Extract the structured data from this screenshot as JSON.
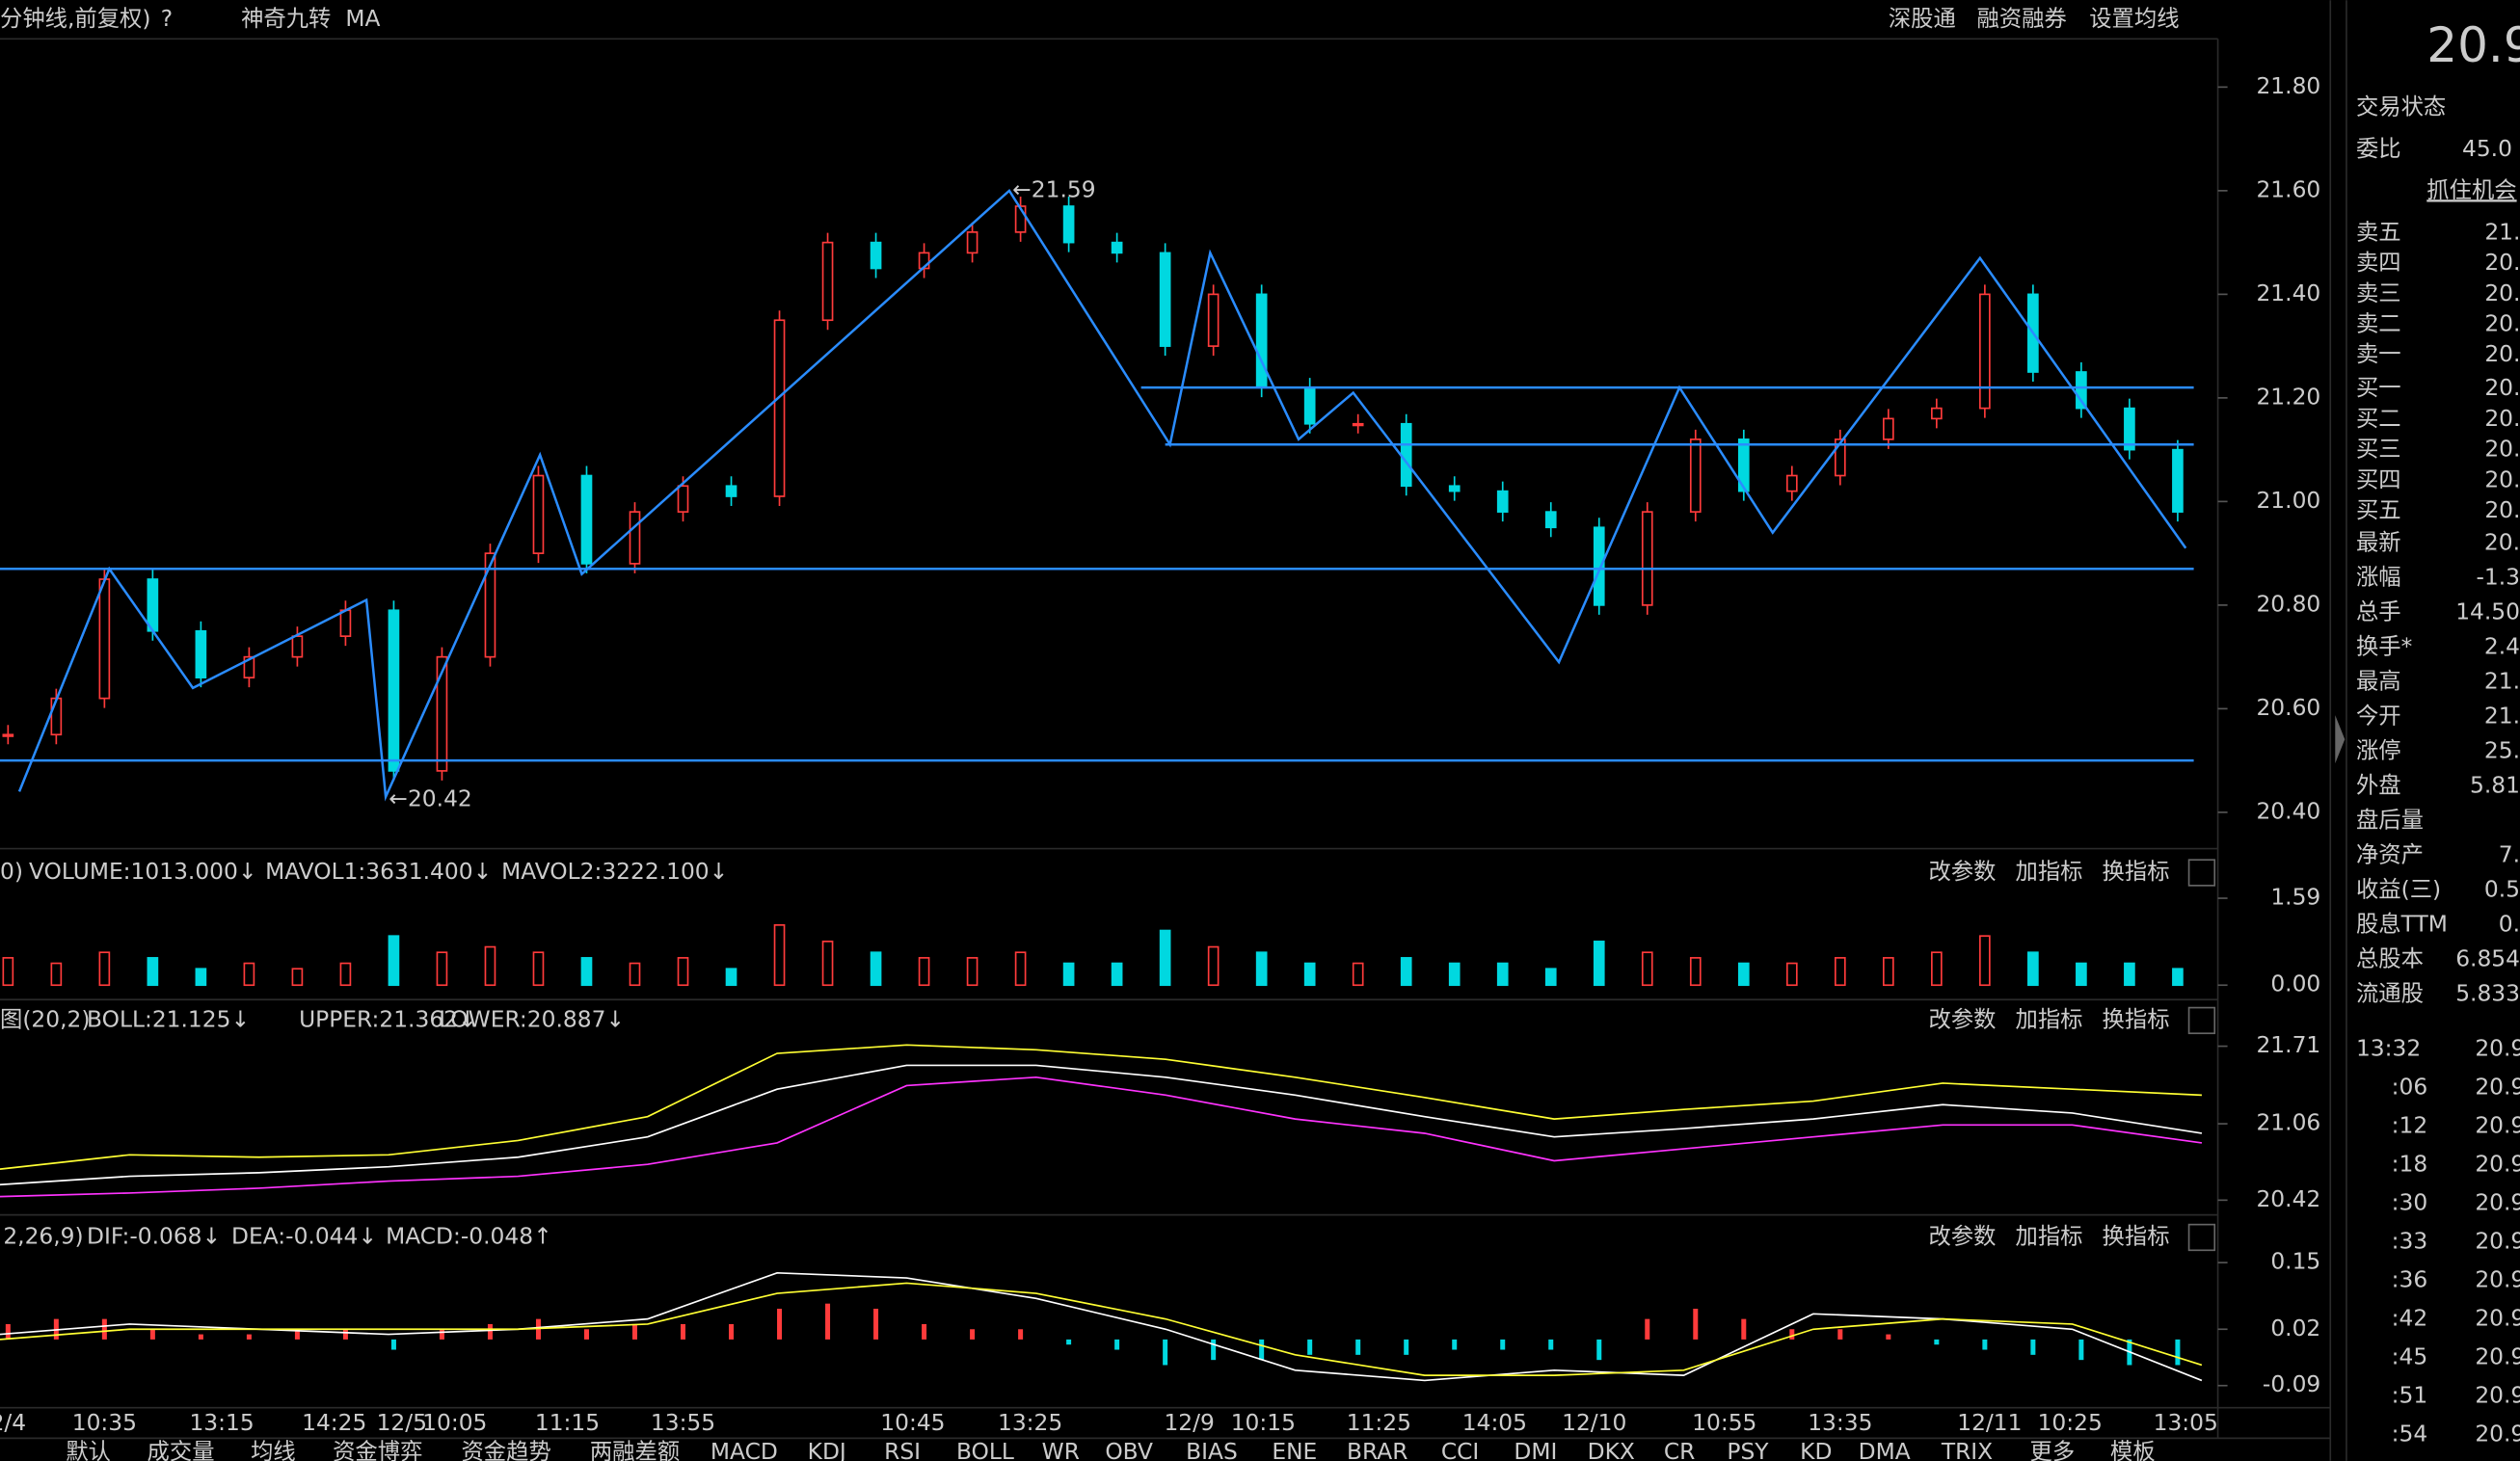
{
  "toolbar": {
    "left": [
      "分钟线,前复权)",
      "?",
      "神奇九转",
      "MA"
    ],
    "right": [
      "深股通",
      "融资融券",
      "设置均线"
    ]
  },
  "main": {
    "type": "candlestick",
    "ylim": [
      20.33,
      21.89
    ],
    "yticks": [
      {
        "value": 20.4,
        "label": "20.40"
      },
      {
        "value": 20.6,
        "label": "20.60"
      },
      {
        "value": 20.8,
        "label": "20.80"
      },
      {
        "value": 21.0,
        "label": "21.00"
      },
      {
        "value": 21.2,
        "label": "21.20"
      },
      {
        "value": 21.4,
        "label": "21.40"
      },
      {
        "value": 21.6,
        "label": "21.60"
      },
      {
        "value": 21.8,
        "label": "21.80"
      }
    ],
    "closes": [
      20.55,
      20.62,
      20.85,
      20.75,
      20.66,
      20.7,
      20.74,
      20.79,
      20.48,
      20.7,
      20.9,
      21.05,
      20.88,
      20.98,
      21.03,
      21.01,
      21.35,
      21.5,
      21.45,
      21.48,
      21.52,
      21.57,
      21.5,
      21.48,
      21.3,
      21.4,
      21.22,
      21.15,
      21.15,
      21.03,
      21.02,
      20.98,
      20.95,
      20.8,
      20.98,
      21.12,
      21.02,
      21.05,
      21.12,
      21.16,
      21.18,
      21.4,
      21.25,
      21.18,
      21.1,
      20.98
    ],
    "zigzag": {
      "color": "#2a8cff",
      "values": [
        20.44,
        20.87,
        20.64,
        20.81,
        20.43,
        21.09,
        20.86,
        21.6,
        21.11,
        21.48,
        21.12,
        21.21,
        20.69,
        21.22,
        20.94,
        21.47,
        20.91
      ]
    },
    "levels": [
      21.22,
      21.11,
      20.87,
      20.5
    ],
    "annotations": [
      "←21.59",
      "←20.42"
    ],
    "times": [
      "2/4",
      "10:35",
      "13:15",
      "14:25",
      "12/5",
      "10:05",
      "11:15",
      "13:55",
      "10:45",
      "13:25",
      "12/9",
      "10:15",
      "11:25",
      "14:05",
      "12/10",
      "10:55",
      "13:35",
      "12/11",
      "10:25",
      "13:05"
    ]
  },
  "volume": {
    "labels": [
      "0)",
      "VOLUME:1013.000↓",
      "MAVOL1:3631.400↓",
      "MAVOL2:3222.100↓"
    ],
    "ylim": [
      0,
      2.44
    ],
    "yticks": [
      {
        "value": 0,
        "label": "0.00"
      },
      1.59
    ],
    "values": [
      0.5,
      0.4,
      0.6,
      0.5,
      0.3,
      0.4,
      0.3,
      0.4,
      0.9,
      0.6,
      0.7,
      0.6,
      0.5,
      0.4,
      0.5,
      0.3,
      1.1,
      0.8,
      0.6,
      0.5,
      0.5,
      0.6,
      0.4,
      0.4,
      1.0,
      0.7,
      0.6,
      0.4,
      0.4,
      0.5,
      0.4,
      0.4,
      0.3,
      0.8,
      0.6,
      0.5,
      0.4,
      0.4,
      0.5,
      0.5,
      0.6,
      0.9,
      0.6,
      0.4,
      0.4,
      0.3
    ]
  },
  "boll": {
    "labels": [
      "图(20,2)",
      "BOLL:21.125↓",
      "UPPER:21.362↓",
      "LOWER:20.887↓"
    ],
    "ylim": [
      20.31,
      22.06
    ],
    "yticks": [
      20.42,
      21.06,
      21.71
    ],
    "mid": [
      20.55,
      20.62,
      20.65,
      20.7,
      20.78,
      20.95,
      21.35,
      21.55,
      21.55,
      21.45,
      21.3,
      21.12,
      20.95,
      21.02,
      21.1,
      21.22,
      21.15,
      20.98
    ],
    "upper": [
      20.68,
      20.8,
      20.78,
      20.8,
      20.92,
      21.12,
      21.65,
      21.72,
      21.68,
      21.6,
      21.45,
      21.28,
      21.1,
      21.18,
      21.25,
      21.4,
      21.35,
      21.3
    ],
    "lower": [
      20.45,
      20.48,
      20.52,
      20.58,
      20.62,
      20.72,
      20.9,
      21.38,
      21.45,
      21.3,
      21.1,
      20.98,
      20.75,
      20.85,
      20.95,
      21.05,
      21.05,
      20.9
    ]
  },
  "macd": {
    "labels": [
      "2,26,9)",
      "DIF:-0.068↓",
      "DEA:-0.044↓",
      "MACD:-0.048↑"
    ],
    "ylim": [
      -0.13,
      0.24
    ],
    "yticks": [
      -0.09,
      0.02,
      0.15
    ],
    "hist": [
      0.03,
      0.04,
      0.04,
      0.02,
      0.01,
      0.01,
      0.02,
      0.02,
      -0.02,
      0.02,
      0.03,
      0.04,
      0.02,
      0.03,
      0.03,
      0.03,
      0.06,
      0.07,
      0.06,
      0.03,
      0.02,
      0.02,
      -0.01,
      -0.02,
      -0.05,
      -0.04,
      -0.04,
      -0.03,
      -0.03,
      -0.03,
      -0.02,
      -0.02,
      -0.02,
      -0.04,
      0.04,
      0.06,
      0.04,
      0.02,
      0.02,
      0.01,
      -0.01,
      -0.02,
      -0.03,
      -0.04,
      -0.05,
      -0.05
    ],
    "dif": [
      0.01,
      0.03,
      0.02,
      0.01,
      0.02,
      0.04,
      0.13,
      0.12,
      0.08,
      0.02,
      -0.06,
      -0.08,
      -0.06,
      -0.07,
      0.05,
      0.04,
      0.02,
      -0.08
    ],
    "dea": [
      0.0,
      0.02,
      0.02,
      0.02,
      0.02,
      0.03,
      0.09,
      0.11,
      0.09,
      0.04,
      -0.03,
      -0.07,
      -0.07,
      -0.06,
      0.02,
      0.04,
      0.03,
      -0.05
    ]
  },
  "pane_actions": [
    "改参数",
    "加指标",
    "换指标"
  ],
  "tabs": [
    "默认",
    "成交量",
    "均线",
    "资金博弈",
    "资金趋势",
    "两融差额",
    "MACD",
    "KDJ",
    "RSI",
    "BOLL",
    "WR",
    "OBV",
    "BIAS",
    "ENE",
    "BRAR",
    "CCI",
    "DMI",
    "DKX",
    "CR",
    "PSY",
    "KD",
    "DMA",
    "TRIX",
    "更多",
    "模板"
  ],
  "side": {
    "price": "20.9",
    "status": "交易状态",
    "ratio": {
      "label": "委比",
      "value": "45.0"
    },
    "opportunity": "抓住机会",
    "book": [
      [
        "卖五",
        "21."
      ],
      [
        "卖四",
        "20."
      ],
      [
        "卖三",
        "20."
      ],
      [
        "卖二",
        "20."
      ],
      [
        "卖一",
        "20."
      ],
      [
        "买一",
        "20."
      ],
      [
        "买二",
        "20."
      ],
      [
        "买三",
        "20."
      ],
      [
        "买四",
        "20."
      ],
      [
        "买五",
        "20."
      ]
    ],
    "stats": [
      {
        "label": "最新",
        "value": "20.",
        "color": "#2ee62e"
      },
      {
        "label": "涨幅",
        "value": "-1.3",
        "color": "#2ee62e"
      },
      {
        "label": "总手",
        "value": "14.50",
        "color": "#ddd"
      },
      {
        "label": "换手*",
        "value": "2.4",
        "color": "#ddd"
      },
      {
        "label": "最高",
        "value": "21.",
        "color": "#ff3b3b"
      },
      {
        "label": "今开",
        "value": "21.",
        "color": "#ddd"
      },
      {
        "label": "涨停",
        "value": "25.",
        "color": "#ff3b3b"
      },
      {
        "label": "外盘",
        "value": "5.81",
        "color": "#ff3b3b"
      },
      {
        "label": "盘后量",
        "value": "",
        "color": "#ddd"
      },
      {
        "label": "净资产",
        "value": "7.",
        "color": "#ddd"
      },
      {
        "label": "收益(三)",
        "value": "0.5",
        "color": "#ddd"
      },
      {
        "label": "股息TTM",
        "value": "0.",
        "color": "#ddd"
      },
      {
        "label": "总股本",
        "value": "6.854",
        "color": "#ddd"
      },
      {
        "label": "流通股",
        "value": "5.833",
        "color": "#ddd"
      }
    ],
    "ticks": [
      [
        "13:32",
        "20.9"
      ],
      [
        ":06",
        "20.9"
      ],
      [
        ":12",
        "20.9"
      ],
      [
        ":18",
        "20.9"
      ],
      [
        ":30",
        "20.9"
      ],
      [
        ":33",
        "20.9"
      ],
      [
        ":36",
        "20.9"
      ],
      [
        ":42",
        "20.9"
      ],
      [
        ":45",
        "20.9"
      ],
      [
        ":51",
        "20.9"
      ],
      [
        ":54",
        "20.9"
      ]
    ]
  }
}
